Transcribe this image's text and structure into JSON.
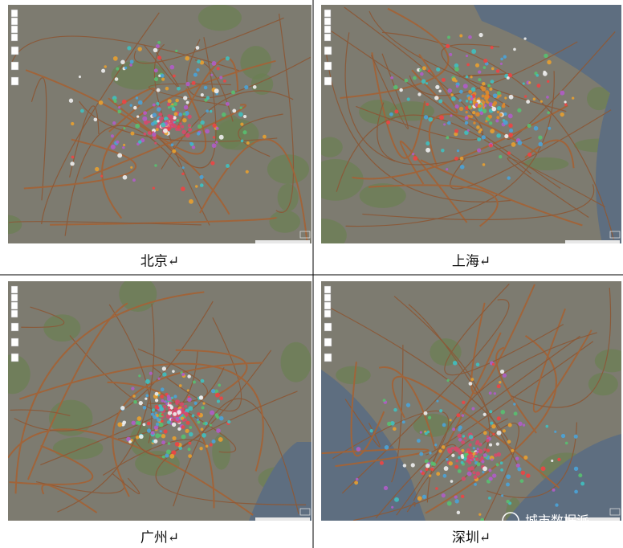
{
  "maps": [
    {
      "caption": "北京↵"
    },
    {
      "caption": "上海↵"
    },
    {
      "caption": "广州↵"
    },
    {
      "caption": "深圳↵"
    }
  ],
  "watermark": "城市数据派"
}
